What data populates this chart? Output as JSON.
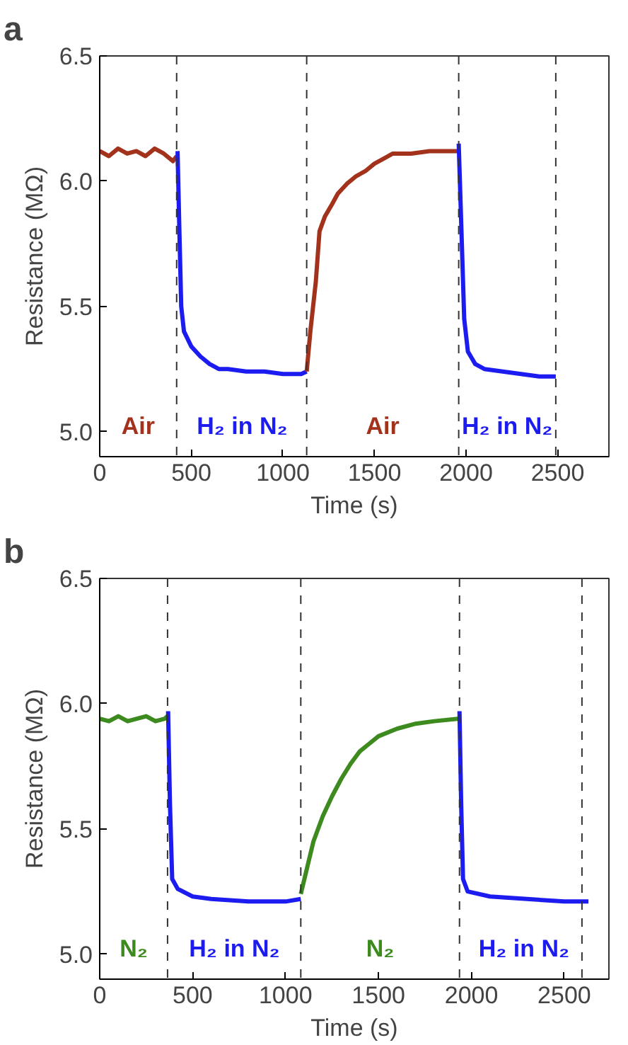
{
  "chart_data": [
    {
      "type": "line",
      "title": "a",
      "xlabel": "Time (s)",
      "ylabel": "Resistance (MΩ)",
      "xlim": [
        0,
        2780
      ],
      "ylim": [
        4.9,
        6.5
      ],
      "xticks": [
        0,
        500,
        1000,
        1500,
        2000,
        2500
      ],
      "yticks": [
        {
          "value": 5,
          "label": "5.0"
        },
        {
          "value": 5.5,
          "label": "5.5"
        },
        {
          "value": 6,
          "label": "6.0"
        },
        {
          "value": 6.5,
          "label": "6.5"
        }
      ],
      "grid": false,
      "marker": "none",
      "line_style": "solid",
      "annotations": [
        "Air",
        "H₂ in N₂",
        "Air",
        "H₂ in N₂"
      ],
      "ref_lines": [
        {
          "axis": "x",
          "value": 420,
          "label": null,
          "color": "#333333",
          "line_style": "dashed"
        },
        {
          "axis": "x",
          "value": 1130,
          "label": null,
          "color": "#333333",
          "line_style": "dashed"
        },
        {
          "axis": "x",
          "value": 1960,
          "label": null,
          "color": "#333333",
          "line_style": "dashed"
        },
        {
          "axis": "x",
          "value": 2490,
          "label": null,
          "color": "#333333",
          "line_style": "dashed"
        }
      ],
      "series": [
        {
          "color": "#a3321c",
          "x": [
            0,
            50,
            100,
            150,
            200,
            250,
            300,
            350,
            400,
            420
          ],
          "values": [
            6.12,
            6.1,
            6.13,
            6.11,
            6.12,
            6.1,
            6.13,
            6.11,
            6.08,
            6.1
          ]
        },
        {
          "color": "#1c1cf0",
          "x": [
            425,
            435,
            445,
            460,
            500,
            550,
            600,
            650,
            700,
            800,
            900,
            1000,
            1100,
            1130
          ],
          "values": [
            6.12,
            5.8,
            5.5,
            5.4,
            5.34,
            5.3,
            5.27,
            5.25,
            5.25,
            5.24,
            5.24,
            5.23,
            5.23,
            5.24
          ]
        },
        {
          "color": "#a3321c",
          "x": [
            1130,
            1150,
            1180,
            1200,
            1230,
            1270,
            1300,
            1350,
            1400,
            1450,
            1500,
            1550,
            1600,
            1700,
            1800,
            1900,
            1960
          ],
          "values": [
            5.24,
            5.4,
            5.6,
            5.8,
            5.86,
            5.91,
            5.95,
            5.99,
            6.02,
            6.04,
            6.07,
            6.09,
            6.11,
            6.11,
            6.12,
            6.12,
            6.12
          ]
        },
        {
          "color": "#1c1cf0",
          "x": [
            1960,
            1975,
            1990,
            2010,
            2050,
            2100,
            2200,
            2300,
            2400,
            2490
          ],
          "values": [
            6.15,
            5.8,
            5.45,
            5.32,
            5.27,
            5.25,
            5.24,
            5.23,
            5.22,
            5.22
          ]
        }
      ]
    },
    {
      "type": "line",
      "title": "b",
      "xlabel": "Time (s)",
      "ylabel": "Resistance (MΩ)",
      "xlim": [
        0,
        2740
      ],
      "ylim": [
        4.9,
        6.5
      ],
      "xticks": [
        0,
        500,
        1000,
        1500,
        2000,
        2500
      ],
      "yticks": [
        {
          "value": 5,
          "label": "5.0"
        },
        {
          "value": 5.5,
          "label": "5.5"
        },
        {
          "value": 6,
          "label": "6.0"
        },
        {
          "value": 6.5,
          "label": "6.5"
        }
      ],
      "grid": false,
      "marker": "none",
      "line_style": "solid",
      "annotations": [
        "N₂",
        "H₂ in N₂",
        "N₂",
        "H₂ in N₂"
      ],
      "ref_lines": [
        {
          "axis": "x",
          "value": 365,
          "label": null,
          "color": "#333333",
          "line_style": "dashed"
        },
        {
          "axis": "x",
          "value": 1082,
          "label": null,
          "color": "#333333",
          "line_style": "dashed"
        },
        {
          "axis": "x",
          "value": 1936,
          "label": null,
          "color": "#333333",
          "line_style": "dashed"
        },
        {
          "axis": "x",
          "value": 2595,
          "label": null,
          "color": "#333333",
          "line_style": "dashed"
        }
      ],
      "series": [
        {
          "color": "#3d8a1e",
          "x": [
            0,
            50,
            100,
            150,
            200,
            250,
            300,
            350,
            365
          ],
          "values": [
            5.94,
            5.93,
            5.95,
            5.93,
            5.94,
            5.95,
            5.93,
            5.94,
            5.95
          ]
        },
        {
          "color": "#1c1cf0",
          "x": [
            368,
            378,
            390,
            420,
            500,
            600,
            800,
            1000,
            1082
          ],
          "values": [
            5.97,
            5.6,
            5.3,
            5.26,
            5.23,
            5.22,
            5.21,
            5.21,
            5.22
          ]
        },
        {
          "color": "#3d8a1e",
          "x": [
            1082,
            1150,
            1200,
            1250,
            1300,
            1350,
            1400,
            1450,
            1500,
            1600,
            1700,
            1800,
            1936
          ],
          "values": [
            5.24,
            5.45,
            5.55,
            5.63,
            5.7,
            5.76,
            5.81,
            5.84,
            5.87,
            5.9,
            5.92,
            5.93,
            5.94
          ]
        },
        {
          "color": "#1c1cf0",
          "x": [
            1936,
            1945,
            1955,
            1980,
            2100,
            2300,
            2500,
            2630
          ],
          "values": [
            5.97,
            5.6,
            5.3,
            5.25,
            5.23,
            5.22,
            5.21,
            5.21
          ]
        }
      ]
    }
  ]
}
